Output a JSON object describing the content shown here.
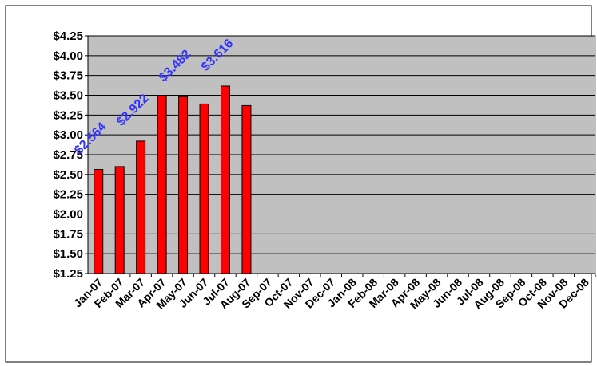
{
  "chart_data": {
    "type": "bar",
    "categories": [
      "Jan-07",
      "Feb-07",
      "Mar-07",
      "Apr-07",
      "May-07",
      "Jun-07",
      "Jul-07",
      "Aug-07",
      "Sep-07",
      "Oct-07",
      "Nov-07",
      "Dec-07",
      "Jan-08",
      "Feb-08",
      "Mar-08",
      "Apr-08",
      "May-08",
      "Jun-08",
      "Jul-08",
      "Aug-08",
      "Sep-08",
      "Oct-08",
      "Nov-08",
      "Dec-08"
    ],
    "values": [
      2.564,
      2.6,
      2.922,
      3.5,
      3.482,
      3.39,
      3.616,
      3.37,
      null,
      null,
      null,
      null,
      null,
      null,
      null,
      null,
      null,
      null,
      null,
      null,
      null,
      null,
      null,
      null
    ],
    "value_labels": [
      "$2.564",
      null,
      "$2.922",
      null,
      "$3.482",
      null,
      "$3.616",
      null,
      null,
      null,
      null,
      null,
      null,
      null,
      null,
      null,
      null,
      null,
      null,
      null,
      null,
      null,
      null,
      null
    ],
    "color": "#ff0000",
    "ylim": [
      1.25,
      4.25
    ],
    "yticks": [
      {
        "value": 1.25,
        "label": "$1.25"
      },
      {
        "value": 1.5,
        "label": "$1.50"
      },
      {
        "value": 1.75,
        "label": "$1.75"
      },
      {
        "value": 2,
        "label": "$2.00"
      },
      {
        "value": 2.25,
        "label": "$2.25"
      },
      {
        "value": 2.5,
        "label": "$2.50"
      },
      {
        "value": 2.75,
        "label": "$2.75"
      },
      {
        "value": 3,
        "label": "$3.00"
      },
      {
        "value": 3.25,
        "label": "$3.25"
      },
      {
        "value": 3.5,
        "label": "$3.50"
      },
      {
        "value": 3.75,
        "label": "$3.75"
      },
      {
        "value": 4,
        "label": "$4.00"
      },
      {
        "value": 4.25,
        "label": "$4.25"
      }
    ],
    "grid": true
  }
}
